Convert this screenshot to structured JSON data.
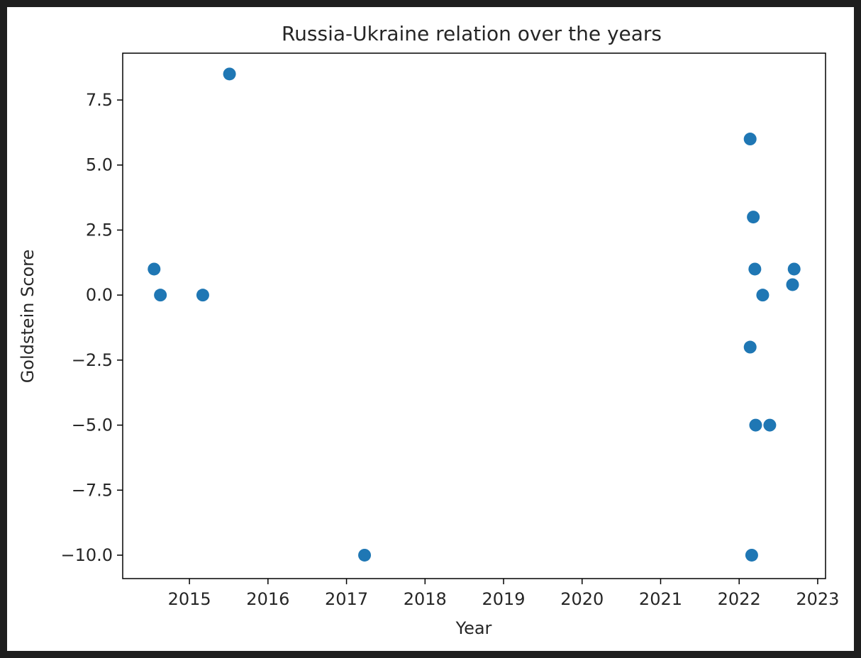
{
  "chart_data": {
    "type": "scatter",
    "title": "Russia-Ukraine relation over the years",
    "xlabel": "Year",
    "ylabel": "Goldstein Score",
    "xlim": [
      2014.15,
      2023.1
    ],
    "ylim": [
      -10.9,
      9.3
    ],
    "x_ticks": [
      2015,
      2016,
      2017,
      2018,
      2019,
      2020,
      2021,
      2022,
      2023
    ],
    "x_tick_labels": [
      "2015",
      "2016",
      "2017",
      "2018",
      "2019",
      "2020",
      "2021",
      "2022",
      "2023"
    ],
    "y_ticks": [
      7.5,
      5.0,
      2.5,
      0.0,
      -2.5,
      -5.0,
      -7.5,
      -10.0
    ],
    "y_tick_labels": [
      "7.5",
      "5.0",
      "2.5",
      "0.0",
      "−2.5",
      "−5.0",
      "−7.5",
      "−10.0"
    ],
    "grid": false,
    "marker_color": "#1f77b4",
    "points": [
      {
        "x": 2014.55,
        "y": 1.0
      },
      {
        "x": 2014.63,
        "y": 0.0
      },
      {
        "x": 2015.17,
        "y": 0.0
      },
      {
        "x": 2015.51,
        "y": 8.5
      },
      {
        "x": 2017.23,
        "y": -10.0
      },
      {
        "x": 2022.14,
        "y": 6.0
      },
      {
        "x": 2022.18,
        "y": 3.0
      },
      {
        "x": 2022.2,
        "y": 1.0
      },
      {
        "x": 2022.3,
        "y": 0.0
      },
      {
        "x": 2022.14,
        "y": -2.0
      },
      {
        "x": 2022.21,
        "y": -5.0
      },
      {
        "x": 2022.39,
        "y": -5.0
      },
      {
        "x": 2022.16,
        "y": -10.0
      },
      {
        "x": 2022.7,
        "y": 1.0
      },
      {
        "x": 2022.68,
        "y": 0.4
      }
    ]
  }
}
